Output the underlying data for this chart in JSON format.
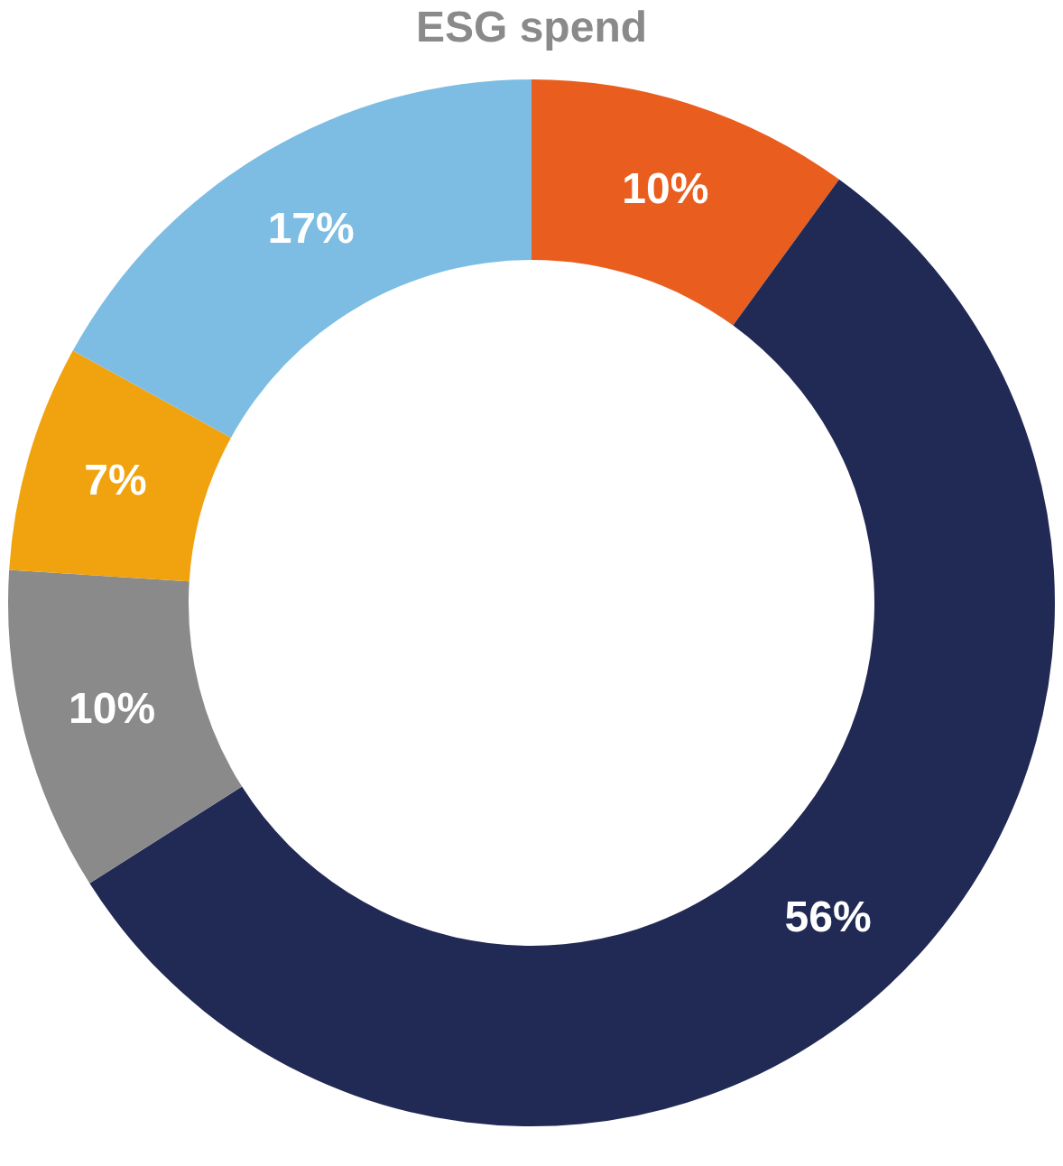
{
  "chart_data": {
    "type": "donut",
    "title": "ESG spend",
    "categories": [
      null,
      null,
      null,
      null,
      null
    ],
    "values": [
      10,
      56,
      10,
      7,
      17
    ],
    "value_labels": [
      "10%",
      "56%",
      "10%",
      "7%",
      "17%"
    ],
    "colors": [
      "#e95e1e",
      "#212955",
      "#8a8a8a",
      "#f0a30f",
      "#7dbde3"
    ]
  }
}
